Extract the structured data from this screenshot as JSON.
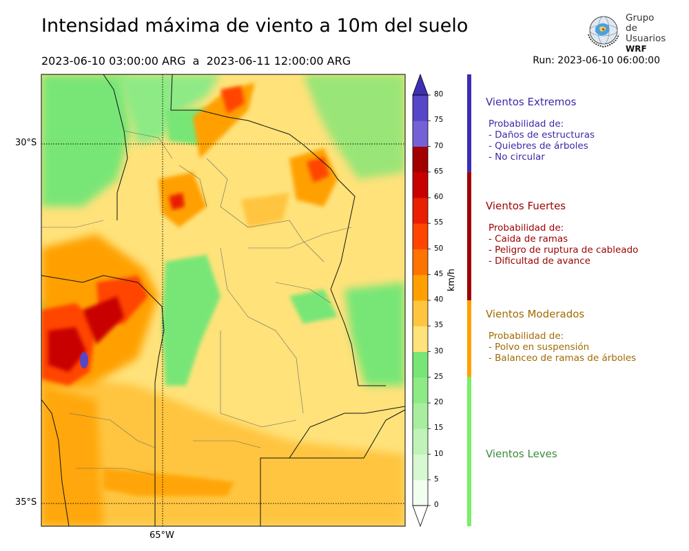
{
  "title": "Intensidad máxima de viento a 10m del suelo",
  "period": "2023-06-10 03:00:00 ARG  a  2023-06-11 12:00:00 ARG",
  "run": "Run: 2023-06-10 06:00:00",
  "logo": {
    "line1": "Grupo de",
    "line2": "Usuarios",
    "line3": "WRF"
  },
  "map": {
    "lat_labels": [
      "30°S",
      "35°S"
    ],
    "lon_labels": [
      "65°W"
    ]
  },
  "colorbar": {
    "unit": "km/h",
    "ticks": [
      "0",
      "5",
      "10",
      "15",
      "20",
      "25",
      "30",
      "35",
      "40",
      "45",
      "50",
      "55",
      "60",
      "65",
      "70",
      "75",
      "80"
    ],
    "colors": [
      "#f0fff0",
      "#d7f8d2",
      "#bff3b8",
      "#a7ee9e",
      "#8eea85",
      "#78e676",
      "#ffe27a",
      "#ffc53f",
      "#ffa000",
      "#ff7300",
      "#ff4500",
      "#e91f00",
      "#c90000",
      "#a20000",
      "#7561d6",
      "#5646c8",
      "#3d2fb4"
    ]
  },
  "categories": [
    {
      "title": "Vientos Extremos",
      "color": "#3a2aa8",
      "bar_color": "#3b2db5",
      "lines": [
        "Probabilidad de:",
        "- Daños de estructuras",
        "- Quiebres de árboles",
        "- No circular"
      ]
    },
    {
      "title": "Vientos Fuertes",
      "color": "#9c0000",
      "bar_color": "#a00000",
      "lines": [
        "Probabilidad de:",
        "- Caida de ramas",
        "- Peligro de ruptura de cableado",
        "- Dificultad de avance"
      ]
    },
    {
      "title": "Vientos Moderados",
      "color": "#a06b00",
      "bar_color": "#ffa000",
      "lines": [
        "Probabilidad de:",
        "- Polvo en suspensión",
        "- Balanceo de ramas de árboles"
      ]
    },
    {
      "title": "Vientos Leves",
      "color": "#3a8a3a",
      "bar_color": "#78f068",
      "lines": []
    }
  ]
}
